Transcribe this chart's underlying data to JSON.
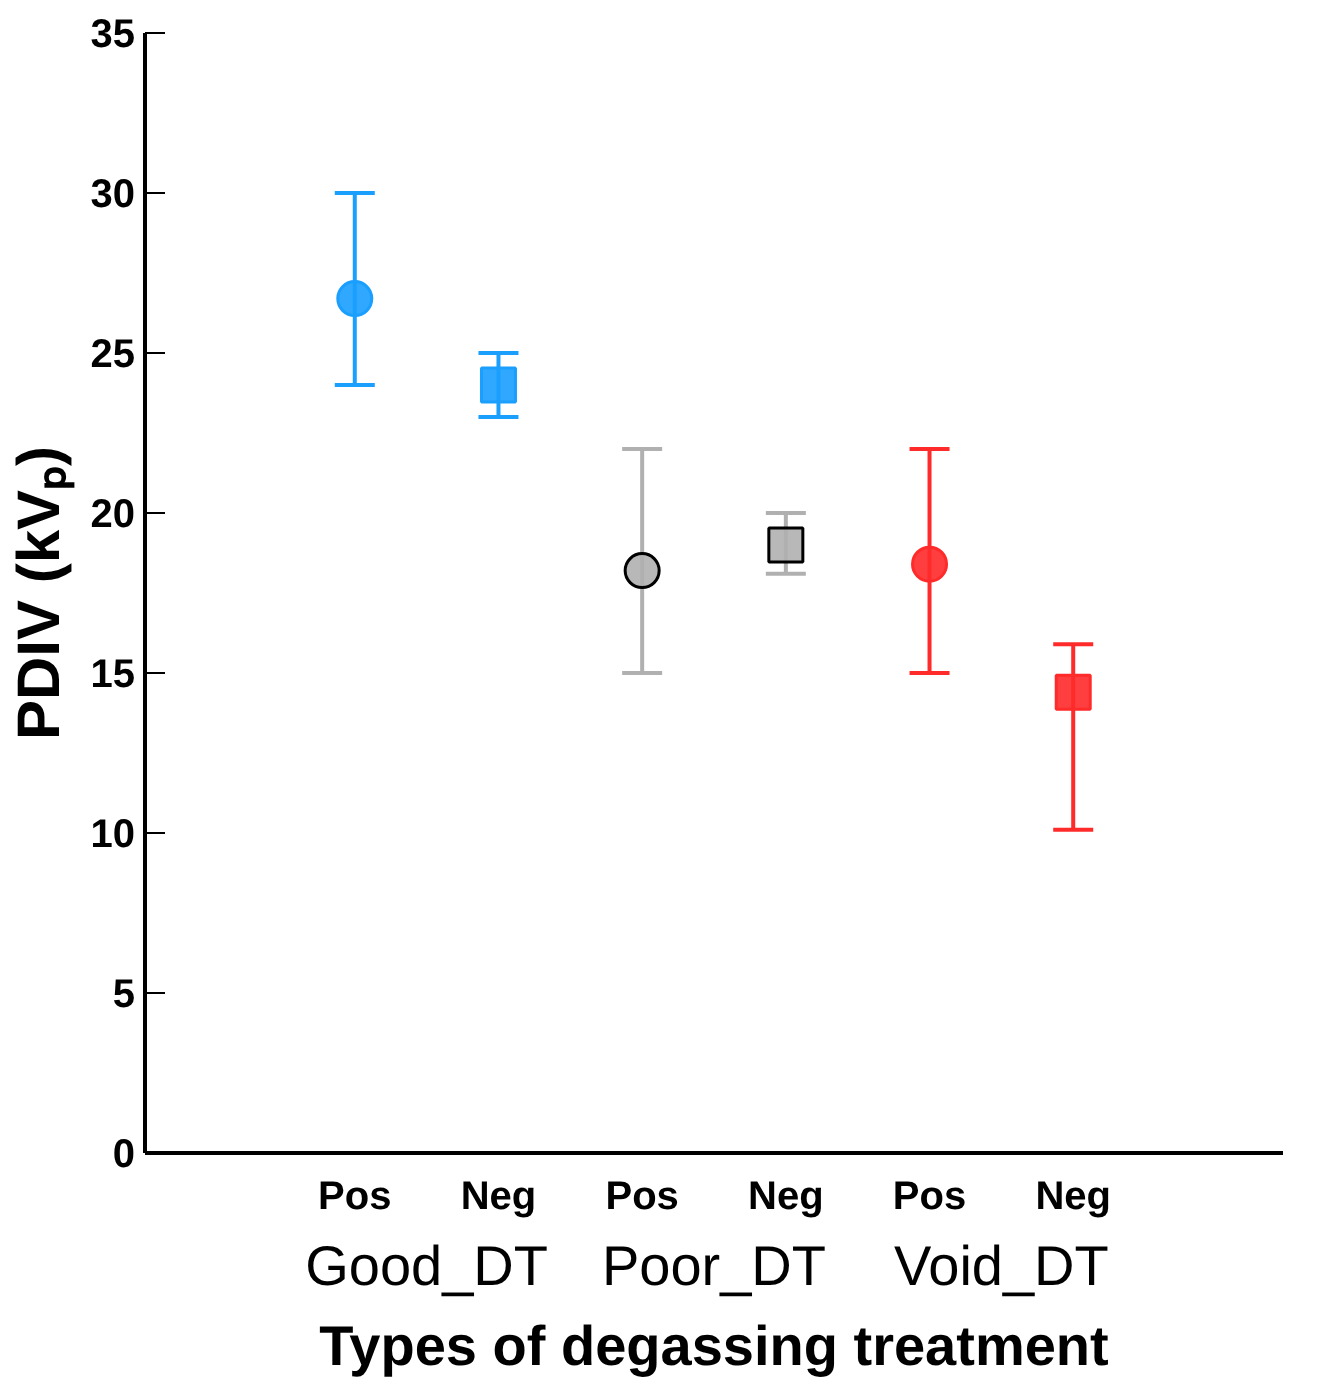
{
  "chart_data": {
    "type": "scatter",
    "xlabel": "Types of degassing treatment",
    "ylabel": "PDIV (kVₚ)",
    "categories": [
      "Pos",
      "Neg",
      "Pos",
      "Neg",
      "Pos",
      "Neg"
    ],
    "annotations": [
      "Good_DT",
      "Poor_DT",
      "Void_DT"
    ],
    "series": [
      {
        "marker": "circle",
        "colors": [
          "#1a9fff",
          null,
          "#b0b0b0",
          null,
          "#ff2a2a",
          null
        ],
        "values": [
          26.7,
          null,
          18.2,
          null,
          18.4,
          null
        ],
        "errors": [
          [
            24,
            30
          ],
          null,
          [
            15,
            22
          ],
          null,
          [
            15,
            22
          ],
          null
        ]
      },
      {
        "marker": "square",
        "colors": [
          null,
          "#1a9fff",
          null,
          "#b0b0b0",
          null,
          "#ff2a2a"
        ],
        "values": [
          null,
          24,
          null,
          19,
          null,
          14.4
        ],
        "errors": [
          null,
          [
            23,
            25
          ],
          null,
          [
            18.1,
            20
          ],
          null,
          [
            10.1,
            15.9
          ]
        ]
      }
    ],
    "ylim": [
      0,
      35
    ],
    "yticks": [
      0,
      5,
      10,
      15,
      20,
      25,
      30,
      35
    ],
    "grid": false
  }
}
